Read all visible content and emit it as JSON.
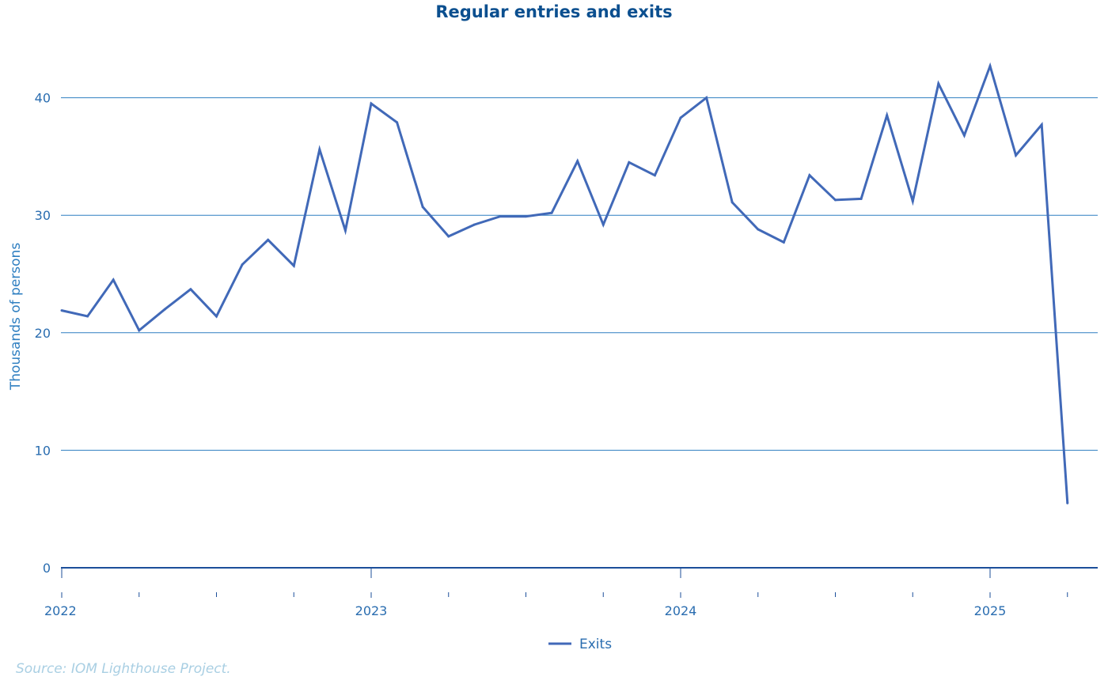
{
  "chart_data": {
    "type": "line",
    "title": "Regular entries and exits",
    "ylabel": "Thousands of persons",
    "xlabel": "",
    "ylim": [
      0,
      44
    ],
    "yticks": [
      0,
      10,
      20,
      30,
      40
    ],
    "xticks": [
      "2022",
      "2023",
      "2024",
      "2025"
    ],
    "grid": true,
    "legend_position": "bottom-center",
    "colors": {
      "series": "#4169b8",
      "grid": "#2f7fc1",
      "axis": "#1c4f9a"
    },
    "series": [
      {
        "name": "Exits",
        "x": [
          "2022-01",
          "2022-02",
          "2022-03",
          "2022-04",
          "2022-05",
          "2022-06",
          "2022-07",
          "2022-08",
          "2022-09",
          "2022-10",
          "2022-11",
          "2022-12",
          "2023-01",
          "2023-02",
          "2023-03",
          "2023-04",
          "2023-05",
          "2023-06",
          "2023-07",
          "2023-08",
          "2023-09",
          "2023-10",
          "2023-11",
          "2023-12",
          "2024-01",
          "2024-02",
          "2024-03",
          "2024-04",
          "2024-05",
          "2024-06",
          "2024-07",
          "2024-08",
          "2024-09",
          "2024-10",
          "2024-11",
          "2024-12",
          "2025-01",
          "2025-02",
          "2025-03",
          "2025-04"
        ],
        "values": [
          21.9,
          21.4,
          24.5,
          20.2,
          22.0,
          23.7,
          21.4,
          25.8,
          27.9,
          25.7,
          35.6,
          28.7,
          39.5,
          37.9,
          30.7,
          28.2,
          29.2,
          29.9,
          29.9,
          30.2,
          34.6,
          29.2,
          34.5,
          33.4,
          38.3,
          40.0,
          31.1,
          28.8,
          27.7,
          33.4,
          31.3,
          31.4,
          38.5,
          31.2,
          41.2,
          36.8,
          42.7,
          35.1,
          37.7,
          5.5
        ]
      }
    ],
    "source": "Source: IOM Lighthouse Project."
  }
}
